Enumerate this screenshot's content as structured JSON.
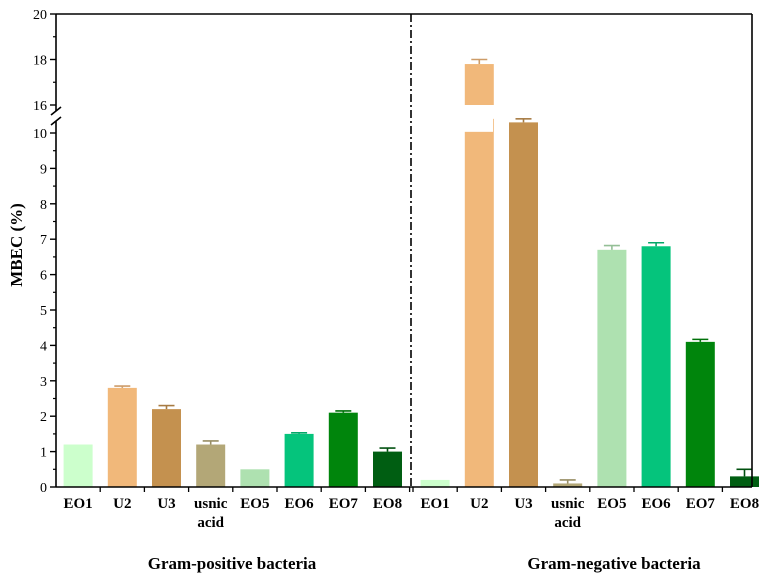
{
  "chart_data": {
    "type": "bar",
    "ylabel": "MBEC (%)",
    "ylim": [
      0,
      20
    ],
    "y_axis_break": [
      10.4,
      15.6
    ],
    "y_ticks_lower": [
      0,
      1,
      2,
      3,
      4,
      5,
      6,
      7,
      8,
      9,
      10
    ],
    "y_ticks_upper": [
      16,
      18,
      20
    ],
    "groups": [
      {
        "name": "Gram-positive bacteria",
        "categories": [
          "EO1",
          "U2",
          "U3",
          "usnic acid",
          "EO5",
          "EO6",
          "EO7",
          "EO8"
        ],
        "values": [
          1.2,
          2.8,
          2.2,
          1.2,
          0.5,
          1.5,
          2.1,
          1.0
        ],
        "errors": [
          0.0,
          0.05,
          0.1,
          0.1,
          0.0,
          0.03,
          0.05,
          0.1
        ]
      },
      {
        "name": "Gram-negative bacteria",
        "categories": [
          "EO1",
          "U2",
          "U3",
          "usnic acid",
          "EO5",
          "EO6",
          "EO7",
          "EO8"
        ],
        "values": [
          0.2,
          17.8,
          10.3,
          0.1,
          6.7,
          6.8,
          4.1,
          0.3
        ],
        "errors": [
          0.0,
          0.2,
          0.1,
          0.1,
          0.12,
          0.1,
          0.07,
          0.2
        ]
      }
    ],
    "colors": [
      "#ccffcc",
      "#f1b87a",
      "#c4914f",
      "#b3a777",
      "#aee1b0",
      "#05c47c",
      "#00850c",
      "#005e12"
    ]
  }
}
